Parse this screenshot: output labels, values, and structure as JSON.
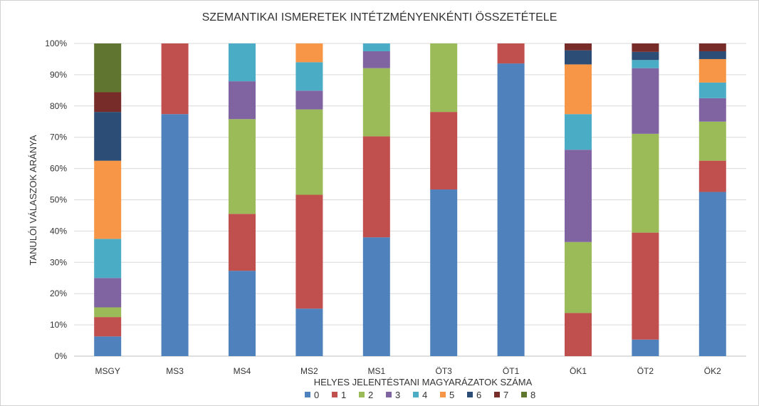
{
  "chart_data": {
    "type": "bar",
    "stacked": true,
    "percent": true,
    "title": "SZEMANTIKAI ISMERETEK  INTÉTZMÉNYENKÉNTI ÖSSZETÉTELE",
    "xlabel": "HELYES JELENTÉSTANI MAGYARÁZATOK SZÁMA",
    "ylabel": "TANULÓI VÁLASZOK ARÁNYA",
    "ylim": [
      0,
      100
    ],
    "yticks": [
      "0%",
      "10%",
      "20%",
      "30%",
      "40%",
      "50%",
      "60%",
      "70%",
      "80%",
      "90%",
      "100%"
    ],
    "grid": true,
    "legend_position": "bottom",
    "categories": [
      "MSGY",
      "MS3",
      "MS4",
      "MS2",
      "MS1",
      "ÖT3",
      "ÖT1",
      "ÖK1",
      "ÖT2",
      "ÖK2"
    ],
    "series": [
      {
        "name": "0",
        "color": "#4f81bd",
        "values": [
          6.3,
          77.4,
          27.3,
          15.2,
          38.0,
          53.3,
          93.6,
          0.0,
          5.3,
          52.5
        ]
      },
      {
        "name": "1",
        "color": "#c0504d",
        "values": [
          6.2,
          22.6,
          18.2,
          36.4,
          32.3,
          24.8,
          6.4,
          13.8,
          34.2,
          10.0
        ]
      },
      {
        "name": "2",
        "color": "#9bbb59",
        "values": [
          3.1,
          0.0,
          30.3,
          27.3,
          21.8,
          21.9,
          0.0,
          22.7,
          31.6,
          12.5
        ]
      },
      {
        "name": "3",
        "color": "#8064a2",
        "values": [
          9.4,
          0.0,
          12.1,
          6.0,
          5.4,
          0.0,
          0.0,
          29.5,
          21.0,
          7.5
        ]
      },
      {
        "name": "4",
        "color": "#4bacc6",
        "values": [
          12.5,
          0.0,
          12.1,
          9.1,
          2.5,
          0.0,
          0.0,
          11.4,
          2.6,
          5.0
        ]
      },
      {
        "name": "5",
        "color": "#f79646",
        "values": [
          25.0,
          0.0,
          0.0,
          6.0,
          0.0,
          0.0,
          0.0,
          15.9,
          0.0,
          7.5
        ]
      },
      {
        "name": "6",
        "color": "#2c4d75",
        "values": [
          15.6,
          0.0,
          0.0,
          0.0,
          0.0,
          0.0,
          0.0,
          4.5,
          2.6,
          2.5
        ]
      },
      {
        "name": "7",
        "color": "#772c2a",
        "values": [
          6.3,
          0.0,
          0.0,
          0.0,
          0.0,
          0.0,
          0.0,
          2.2,
          2.7,
          2.5
        ]
      },
      {
        "name": "8",
        "color": "#5f7530",
        "values": [
          15.6,
          0.0,
          0.0,
          0.0,
          0.0,
          0.0,
          0.0,
          0.0,
          0.0,
          0.0
        ]
      }
    ]
  }
}
